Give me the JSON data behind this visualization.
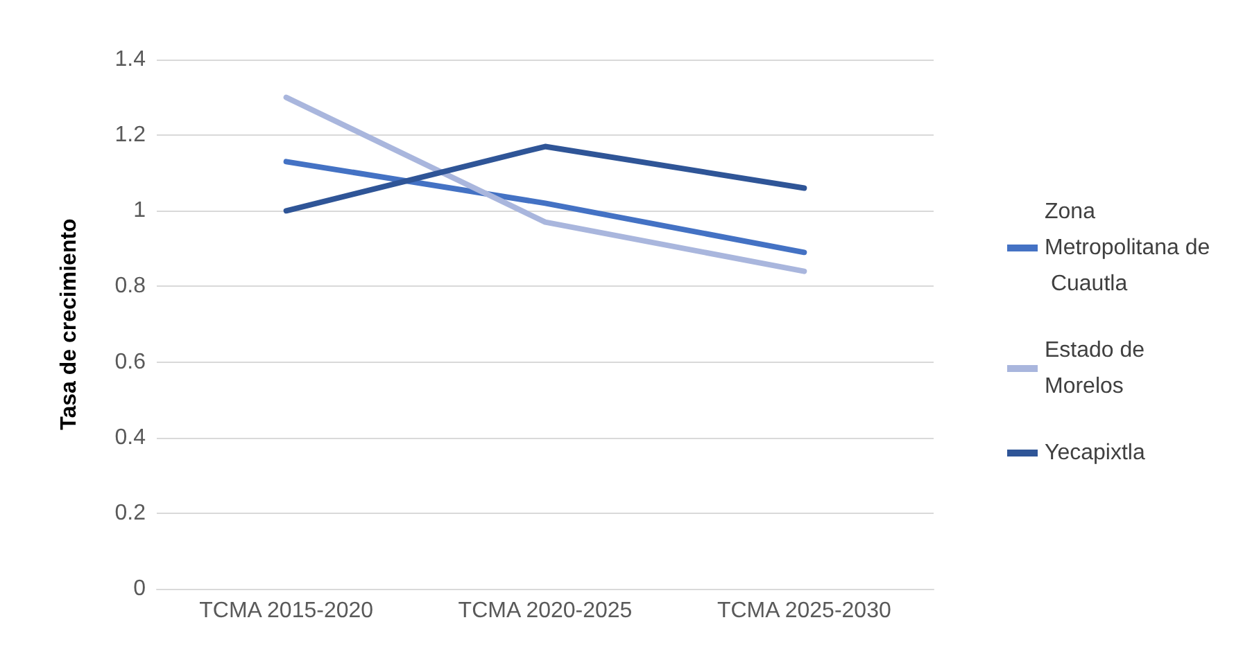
{
  "chart_data": {
    "type": "line",
    "ylabel": "Tasa de crecimiento",
    "categories": [
      "TCMA 2015-2020",
      "TCMA 2020-2025",
      "TCMA 2025-2030"
    ],
    "series": [
      {
        "name": "Zona Metropolitana de Cuautla",
        "color": "#4472c4",
        "values": [
          1.13,
          1.02,
          0.89
        ]
      },
      {
        "name": "Estado de Morelos",
        "color": "#a9b6dd",
        "values": [
          1.3,
          0.97,
          0.84
        ]
      },
      {
        "name": "Yecapixtla",
        "color": "#2f5597",
        "values": [
          1.0,
          1.17,
          1.06
        ]
      }
    ],
    "ylim": [
      0,
      1.4
    ],
    "yticks": [
      0,
      0.2,
      0.4,
      0.6,
      0.8,
      1,
      1.2,
      1.4
    ],
    "grid": "y",
    "legend": "right",
    "marker": "none",
    "line_style": "solid"
  }
}
